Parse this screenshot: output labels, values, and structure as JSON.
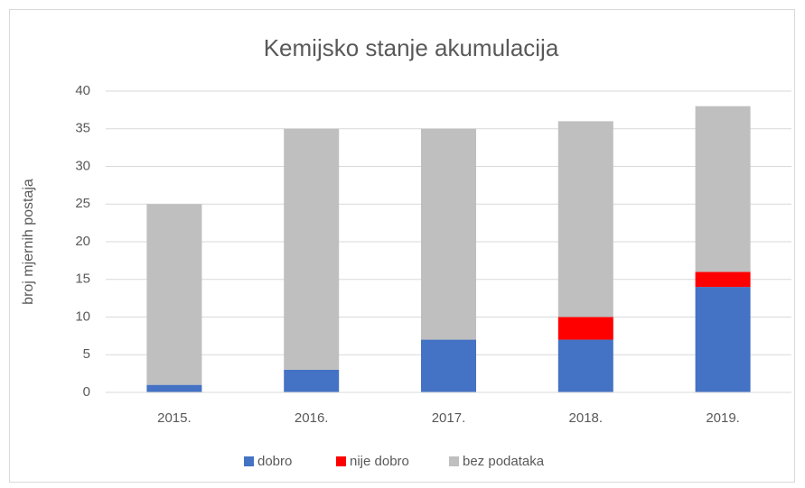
{
  "chart_data": {
    "type": "stacked_bar",
    "title": "Kemijsko stanje akumulacija",
    "y_label": "broj mjernih postaja",
    "categories": [
      "2015.",
      "2016.",
      "2017.",
      "2018.",
      "2019."
    ],
    "series": [
      {
        "name": "dobro",
        "color": "#4472c4",
        "values": [
          1,
          3,
          7,
          7,
          14
        ]
      },
      {
        "name": "nije dobro",
        "color": "#ff0000",
        "values": [
          0,
          0,
          0,
          3,
          2
        ]
      },
      {
        "name": "bez podataka",
        "color": "#bfbfbf",
        "values": [
          24,
          32,
          28,
          26,
          22
        ]
      }
    ],
    "ylim": [
      0,
      40
    ],
    "yticks": [
      0,
      5,
      10,
      15,
      20,
      25,
      30,
      35,
      40
    ],
    "grid": true,
    "legend": "bottom"
  }
}
